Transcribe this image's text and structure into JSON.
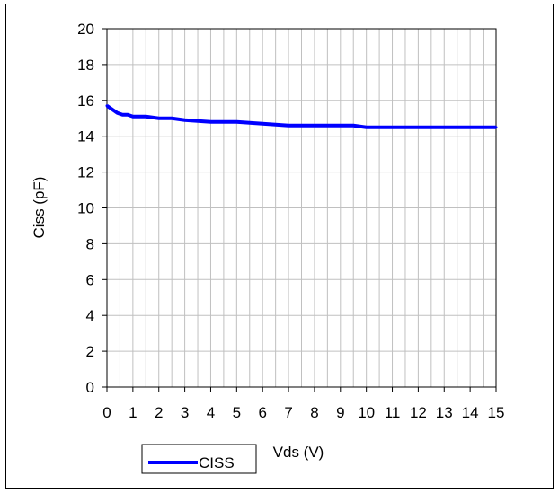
{
  "chart_data": {
    "type": "line",
    "xlabel": "Vds (V)",
    "ylabel": "Ciss (pF)",
    "xlim": [
      0,
      15
    ],
    "ylim": [
      0,
      20
    ],
    "xticks": [
      0,
      1,
      2,
      3,
      4,
      5,
      6,
      7,
      8,
      9,
      10,
      11,
      12,
      13,
      14,
      15
    ],
    "yticks": [
      0,
      2,
      4,
      6,
      8,
      10,
      12,
      14,
      16,
      18,
      20
    ],
    "x_minor_step": 0.5,
    "grid": true,
    "legend_position": "bottom-left",
    "series": [
      {
        "name": "CISS",
        "color": "#0000ff",
        "x": [
          0,
          0.2,
          0.4,
          0.6,
          0.8,
          1.0,
          1.5,
          2.0,
          2.5,
          3.0,
          4.0,
          5.0,
          6.0,
          7.0,
          8.0,
          9.0,
          9.5,
          10.0,
          11.0,
          12.0,
          13.0,
          14.0,
          15.0
        ],
        "y": [
          15.7,
          15.5,
          15.3,
          15.2,
          15.2,
          15.1,
          15.1,
          15.0,
          15.0,
          14.9,
          14.8,
          14.8,
          14.7,
          14.6,
          14.6,
          14.6,
          14.6,
          14.5,
          14.5,
          14.5,
          14.5,
          14.5,
          14.5
        ]
      }
    ]
  }
}
